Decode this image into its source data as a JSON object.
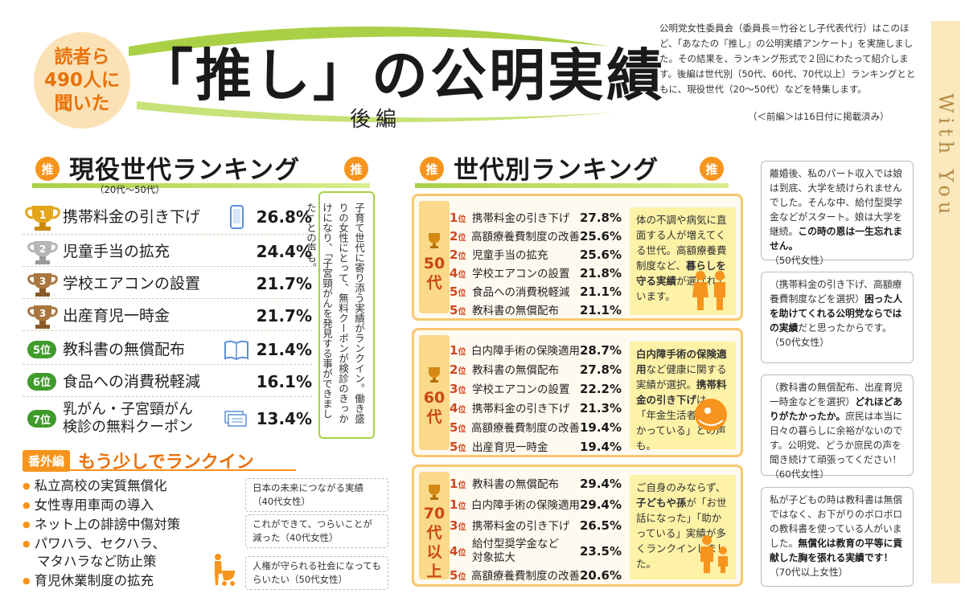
{
  "header": {
    "badge": [
      "読者ら",
      "490人に",
      "聞いた"
    ],
    "title": "「推し」の公明実績",
    "subtitle": "後編",
    "intro": "公明党女性委員会（委員長＝竹谷とし子代表代行）はこのほど、「あなたの『推し』の公明実績アンケート」を実施しました。その結果を、ランキング形式で２回にわたって紹介します。後編は世代別（50代、60代、70代以上）ランキングとともに、現役世代（20〜50代）などを特集します。",
    "intro_note": "（＜前編＞は16日付に掲載済み）",
    "side_text": "With You"
  },
  "current": {
    "oshi": "推",
    "title": "現役世代ランキング",
    "age": "（20代〜50代）",
    "rows": [
      {
        "rank": "1",
        "item": "携帯料金の引き下げ",
        "pct": "26.8%",
        "icon": "smartphone-icon"
      },
      {
        "rank": "2",
        "item": "児童手当の拡充",
        "pct": "24.4%"
      },
      {
        "rank": "3",
        "item": "学校エアコンの設置",
        "pct": "21.7%"
      },
      {
        "rank": "3",
        "item": "出産育児一時金",
        "pct": "21.7%"
      },
      {
        "rank": "5位",
        "item": "教科書の無償配布",
        "pct": "21.4%",
        "icon": "book-icon"
      },
      {
        "rank": "6位",
        "item": "食品への消費税軽減",
        "pct": "16.1%"
      },
      {
        "rank": "7位",
        "item": "乳がん・子宮頸がん検診の無料クーポン",
        "item_lines": [
          "乳がん・子宮頸がん",
          "検診の無料クーポン"
        ],
        "pct": "13.4%",
        "icon": "coupon-icon"
      }
    ],
    "vertical_comment": "子育て世代に寄り添う実績がランクイン。働き盛りの女性にとって、無料クーポンが検診のきっかけになり、「子宮頸がんを発見する事ができました」との声も。"
  },
  "bangai": {
    "label": "番外編",
    "title": "もう少しでランクイン",
    "items": [
      "私立高校の実質無償化",
      "女性専用車両の導入",
      "ネット上の誹謗中傷対策",
      "パワハラ、セクハラ、",
      "マタハラなど防止策",
      "育児休業制度の拡充"
    ],
    "comments": [
      "日本の未来につながる実績（40代女性）",
      "これができて、つらいことが減った（40代女性）",
      "人権が守られる社会になってもらいたい（50代女性）"
    ]
  },
  "generation": {
    "oshi": "推",
    "title": "世代別ランキング",
    "rank_suffix": "位",
    "groups": [
      {
        "gen": [
          "50",
          "代"
        ],
        "rows": [
          {
            "rank": "1",
            "item": "携帯料金の引き下げ",
            "pct": "27.8%"
          },
          {
            "rank": "2",
            "item": "高額療養費制度の改善",
            "pct": "25.6%"
          },
          {
            "rank": "2",
            "item": "児童手当の拡充",
            "pct": "25.6%"
          },
          {
            "rank": "4",
            "item": "学校エアコンの設置",
            "pct": "21.8%"
          },
          {
            "rank": "5",
            "item": "食品への消費税軽減",
            "pct": "21.1%"
          },
          {
            "rank": "5",
            "item": "教科書の無償配布",
            "pct": "21.1%"
          }
        ],
        "note_pre": "体の不調や病気に直面する人が増えてくる世代。高額療養費制度など、",
        "note_bold": "暮らしを守る実績",
        "note_post": "が選ばれています。"
      },
      {
        "gen": [
          "60",
          "代"
        ],
        "rows": [
          {
            "rank": "1",
            "item": "白内障手術の保険適用",
            "pct": "28.7%"
          },
          {
            "rank": "2",
            "item": "教科書の無償配布",
            "pct": "27.8%"
          },
          {
            "rank": "3",
            "item": "学校エアコンの設置",
            "pct": "22.2%"
          },
          {
            "rank": "4",
            "item": "携帯料金の引き下げ",
            "pct": "21.3%"
          },
          {
            "rank": "5",
            "item": "高額療養費制度の改善",
            "pct": "19.4%"
          },
          {
            "rank": "5",
            "item": "出産育児一時金",
            "pct": "19.4%"
          }
        ],
        "note_bold1": "白内障手術の保険適用",
        "note_mid": "など健康に関する実績が選択。",
        "note_bold2": "携帯料金の引き下げ",
        "note_post": "は、「年金生活者には助かっている」との声も。"
      },
      {
        "gen": [
          "70",
          "代",
          "以",
          "上"
        ],
        "rows": [
          {
            "rank": "1",
            "item": "教科書の無償配布",
            "pct": "29.4%"
          },
          {
            "rank": "1",
            "item": "白内障手術の保険適用",
            "pct": "29.4%"
          },
          {
            "rank": "3",
            "item": "携帯料金の引き下げ",
            "pct": "26.5%"
          },
          {
            "rank": "4",
            "item": "給付型奨学金など対象拡大",
            "item_lines": [
              "給付型奨学金など",
              "対象拡大"
            ],
            "pct": "23.5%"
          },
          {
            "rank": "5",
            "item": "高額療養費制度の改善",
            "pct": "20.6%"
          }
        ],
        "note_pre": "ご自身のみならず、",
        "note_bold": "子どもや孫",
        "note_post": "が「お世話になった」「助かっている」実績が多くランクインしました。"
      }
    ]
  },
  "voices": [
    {
      "pre": "離婚後、私のパート収入では娘は到底、大学を続けられませんでした。そんな中、給付型奨学金などがスタート。娘は大学を継続。",
      "bold": "この時の恩は一生忘れません。",
      "post": "",
      "by": "（50代女性）"
    },
    {
      "pre": "（携帯料金の引き下げ、高額療養費制度などを選択）",
      "bold": "困った人を助けてくれる公明党ならではの実績",
      "post": "だと思ったからです。",
      "by": "（50代女性）"
    },
    {
      "pre": "（教科書の無償配布、出産育児一時金などを選択）",
      "bold": "どれほどありがたかったか。",
      "post": "庶民は本当に日々の暮らしに余裕がないのです。公明党、どうか庶民の声を聞き続けて頑張ってください！",
      "by": "（60代女性）"
    },
    {
      "pre": "私が子どもの時は教科書は無償ではなく、お下がりのボロボロの教科書を使っている人がいました。",
      "bold": "無償化は教育の平等に貢献した胸を張れる実績です！",
      "post": "",
      "by": "（70代以上女性）"
    }
  ]
}
